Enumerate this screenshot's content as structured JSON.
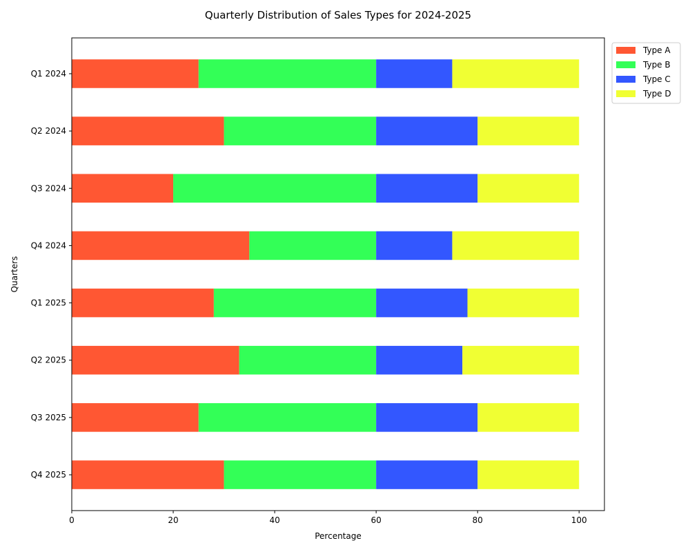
{
  "chart_data": {
    "type": "bar",
    "orientation": "horizontal",
    "stacked": true,
    "title": "Quarterly Distribution of Sales Types for 2024-2025",
    "xlabel": "Percentage",
    "ylabel": "Quarters",
    "xlim": [
      0,
      105
    ],
    "xticks": [
      0,
      20,
      40,
      60,
      80,
      100
    ],
    "categories": [
      "Q1 2024",
      "Q2 2024",
      "Q3 2024",
      "Q4 2024",
      "Q1 2025",
      "Q2 2025",
      "Q3 2025",
      "Q4 2025"
    ],
    "series": [
      {
        "name": "Type A",
        "color": "#ff5733",
        "values": [
          25,
          30,
          20,
          35,
          28,
          33,
          25,
          30
        ]
      },
      {
        "name": "Type B",
        "color": "#33ff57",
        "values": [
          35,
          30,
          40,
          25,
          32,
          27,
          35,
          30
        ]
      },
      {
        "name": "Type C",
        "color": "#3357ff",
        "values": [
          15,
          20,
          20,
          15,
          18,
          17,
          20,
          20
        ]
      },
      {
        "name": "Type D",
        "color": "#f0ff33",
        "values": [
          25,
          20,
          20,
          25,
          22,
          23,
          20,
          20
        ]
      }
    ],
    "grid": false,
    "legend_position": "upper-right-outside"
  }
}
